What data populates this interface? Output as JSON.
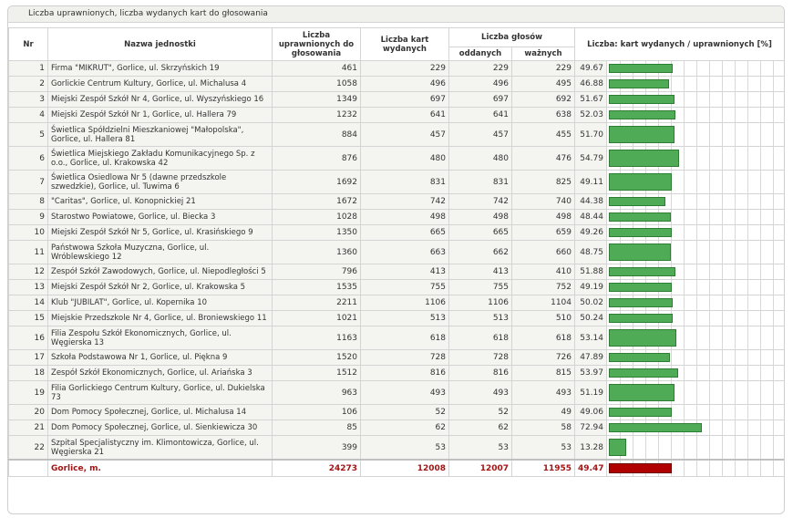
{
  "caption": "Liczba uprawnionych, liczba wydanych kart do głosowania",
  "headers": {
    "nr": "Nr",
    "name": "Nazwa jednostki",
    "eligible": "Liczba uprawnionych do głosowania",
    "issued": "Liczba kart wydanych",
    "votes": "Liczba głosów",
    "cast": "oddanych",
    "valid": "ważnych",
    "ratio": "Liczba: kart wydanych / uprawnionych [%]"
  },
  "colors": {
    "bar": "#4fab55",
    "total_bar": "#b00000",
    "total_text": "#a31515"
  },
  "chart_data": {
    "type": "table",
    "rows": [
      {
        "nr": "1",
        "name": "Firma \"MIKRUT\", Gorlice, ul. Skrzyńskich 19",
        "eligible": "461",
        "issued": "229",
        "cast": "229",
        "valid": "229",
        "pct": "49.67"
      },
      {
        "nr": "2",
        "name": "Gorlickie Centrum Kultury, Gorlice, ul. Michalusa 4",
        "eligible": "1058",
        "issued": "496",
        "cast": "496",
        "valid": "495",
        "pct": "46.88"
      },
      {
        "nr": "3",
        "name": "Miejski Zespół Szkół Nr 4, Gorlice, ul. Wyszyńskiego 16",
        "eligible": "1349",
        "issued": "697",
        "cast": "697",
        "valid": "692",
        "pct": "51.67"
      },
      {
        "nr": "4",
        "name": "Miejski Zespół Szkół Nr 1, Gorlice, ul. Hallera 79",
        "eligible": "1232",
        "issued": "641",
        "cast": "641",
        "valid": "638",
        "pct": "52.03"
      },
      {
        "nr": "5",
        "name": "Świetlica Spółdzielni Mieszkaniowej \"Małopolska\", Gorlice, ul. Hallera 81",
        "eligible": "884",
        "issued": "457",
        "cast": "457",
        "valid": "455",
        "pct": "51.70"
      },
      {
        "nr": "6",
        "name": "Świetlica Miejskiego Zakładu Komunikacyjnego Sp. z o.o., Gorlice, ul. Krakowska 42",
        "eligible": "876",
        "issued": "480",
        "cast": "480",
        "valid": "476",
        "pct": "54.79"
      },
      {
        "nr": "7",
        "name": "Świetlica Osiedlowa Nr 5 (dawne przedszkole szwedzkie), Gorlice, ul. Tuwima 6",
        "eligible": "1692",
        "issued": "831",
        "cast": "831",
        "valid": "825",
        "pct": "49.11"
      },
      {
        "nr": "8",
        "name": "\"Caritas\", Gorlice, ul. Konopnickiej 21",
        "eligible": "1672",
        "issued": "742",
        "cast": "742",
        "valid": "740",
        "pct": "44.38"
      },
      {
        "nr": "9",
        "name": "Starostwo Powiatowe, Gorlice, ul. Biecka 3",
        "eligible": "1028",
        "issued": "498",
        "cast": "498",
        "valid": "498",
        "pct": "48.44"
      },
      {
        "nr": "10",
        "name": "Miejski Zespół Szkół Nr 5, Gorlice, ul. Krasińskiego 9",
        "eligible": "1350",
        "issued": "665",
        "cast": "665",
        "valid": "659",
        "pct": "49.26"
      },
      {
        "nr": "11",
        "name": "Państwowa Szkoła Muzyczna, Gorlice, ul. Wróblewskiego 12",
        "eligible": "1360",
        "issued": "663",
        "cast": "662",
        "valid": "660",
        "pct": "48.75"
      },
      {
        "nr": "12",
        "name": "Zespół Szkół Zawodowych, Gorlice, ul. Niepodległości 5",
        "eligible": "796",
        "issued": "413",
        "cast": "413",
        "valid": "410",
        "pct": "51.88"
      },
      {
        "nr": "13",
        "name": "Miejski Zespół Szkół Nr 2, Gorlice, ul. Krakowska 5",
        "eligible": "1535",
        "issued": "755",
        "cast": "755",
        "valid": "752",
        "pct": "49.19"
      },
      {
        "nr": "14",
        "name": "Klub \"JUBILAT\", Gorlice, ul. Kopernika 10",
        "eligible": "2211",
        "issued": "1106",
        "cast": "1106",
        "valid": "1104",
        "pct": "50.02"
      },
      {
        "nr": "15",
        "name": "Miejskie Przedszkole Nr 4, Gorlice, ul. Broniewskiego 11",
        "eligible": "1021",
        "issued": "513",
        "cast": "513",
        "valid": "510",
        "pct": "50.24"
      },
      {
        "nr": "16",
        "name": "Filia Zespołu Szkół Ekonomicznych, Gorlice, ul. Węgierska 13",
        "eligible": "1163",
        "issued": "618",
        "cast": "618",
        "valid": "618",
        "pct": "53.14"
      },
      {
        "nr": "17",
        "name": "Szkoła Podstawowa Nr 1, Gorlice, ul. Piękna 9",
        "eligible": "1520",
        "issued": "728",
        "cast": "728",
        "valid": "726",
        "pct": "47.89"
      },
      {
        "nr": "18",
        "name": "Zespół Szkół Ekonomicznych, Gorlice, ul. Ariańska 3",
        "eligible": "1512",
        "issued": "816",
        "cast": "816",
        "valid": "815",
        "pct": "53.97"
      },
      {
        "nr": "19",
        "name": "Filia Gorlickiego Centrum Kultury, Gorlice, ul. Dukielska 73",
        "eligible": "963",
        "issued": "493",
        "cast": "493",
        "valid": "493",
        "pct": "51.19"
      },
      {
        "nr": "20",
        "name": "Dom Pomocy Społecznej, Gorlice, ul. Michalusa 14",
        "eligible": "106",
        "issued": "52",
        "cast": "52",
        "valid": "49",
        "pct": "49.06"
      },
      {
        "nr": "21",
        "name": "Dom Pomocy Społecznej, Gorlice, ul. Sienkiewicza 30",
        "eligible": "85",
        "issued": "62",
        "cast": "62",
        "valid": "58",
        "pct": "72.94"
      },
      {
        "nr": "22",
        "name": "Szpital Specjalistyczny im. Klimontowicza, Gorlice, ul. Węgierska 21",
        "eligible": "399",
        "issued": "53",
        "cast": "53",
        "valid": "53",
        "pct": "13.28"
      }
    ],
    "total": {
      "name": "Gorlice, m.",
      "eligible": "24273",
      "issued": "12008",
      "cast": "12007",
      "valid": "11955",
      "pct": "49.47"
    },
    "bar_scale_max": 100
  }
}
